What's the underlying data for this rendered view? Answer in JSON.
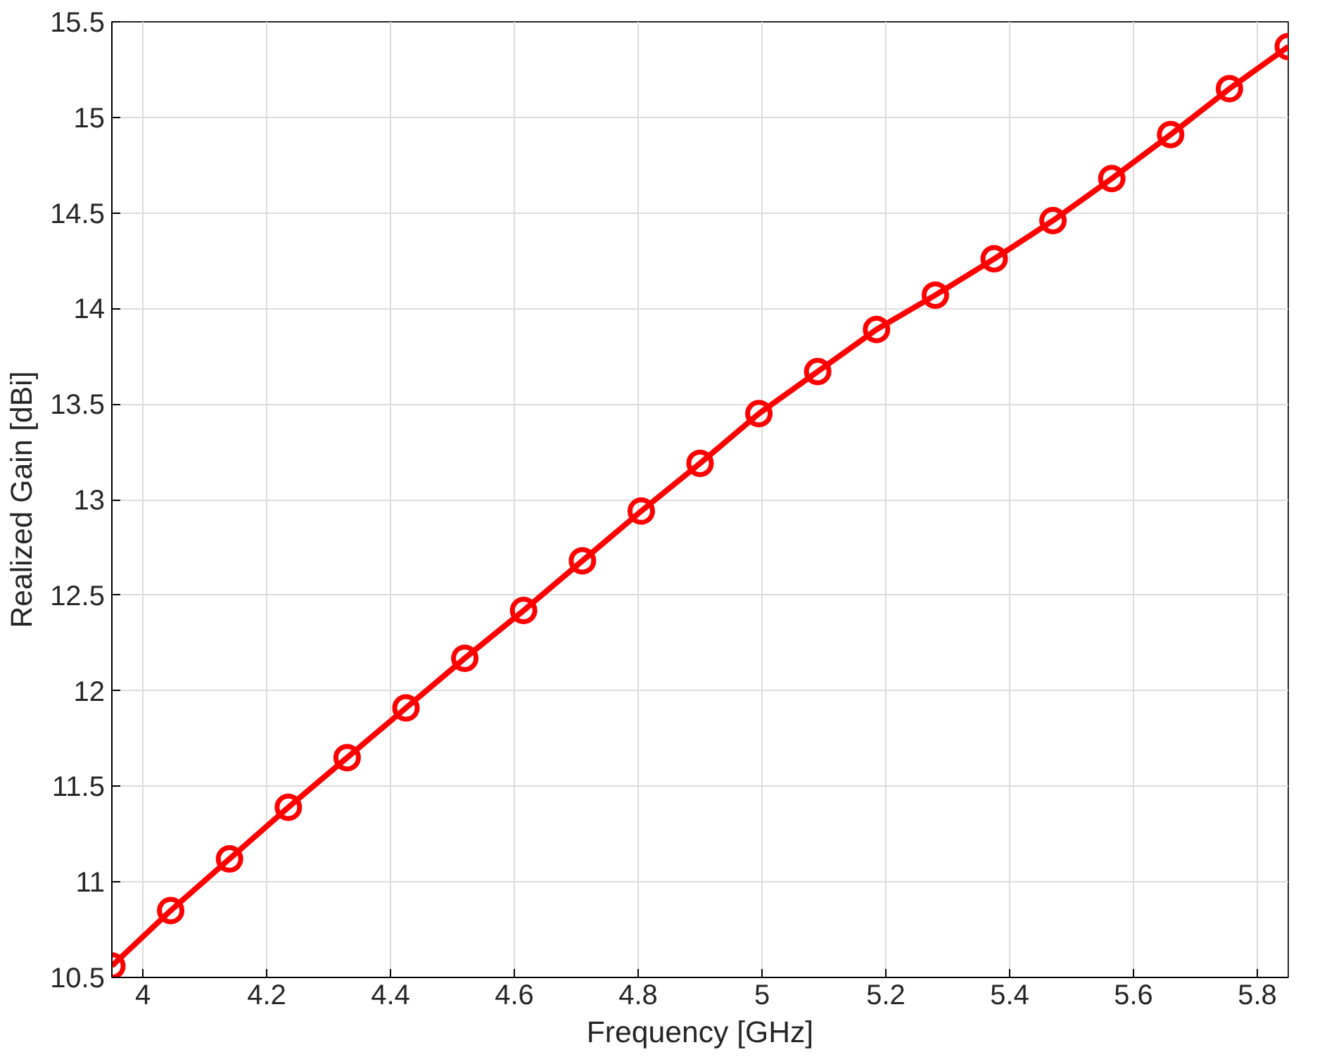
{
  "chart_data": {
    "type": "line",
    "xlabel": "Frequency [GHz]",
    "ylabel": "Realized Gain [dBi]",
    "x": [
      3.95,
      4.045,
      4.14,
      4.235,
      4.33,
      4.425,
      4.52,
      4.615,
      4.71,
      4.805,
      4.9,
      4.995,
      5.09,
      5.185,
      5.28,
      5.375,
      5.47,
      5.565,
      5.66,
      5.755,
      5.85
    ],
    "series": [
      {
        "color": "#ff0000",
        "values": [
          10.56,
          10.85,
          11.12,
          11.39,
          11.65,
          11.91,
          12.17,
          12.42,
          12.68,
          12.94,
          13.19,
          13.45,
          13.67,
          13.89,
          14.07,
          14.26,
          14.46,
          14.68,
          14.91,
          15.15,
          15.37
        ]
      }
    ],
    "xlim": [
      3.95,
      5.85
    ],
    "ylim": [
      10.5,
      15.5
    ],
    "xticks": [
      4,
      4.2,
      4.4,
      4.6,
      4.8,
      5,
      5.2,
      5.4,
      5.6,
      5.8
    ],
    "yticks": [
      10.5,
      11,
      11.5,
      12,
      12.5,
      13,
      13.5,
      14,
      14.5,
      15,
      15.5
    ],
    "grid": true,
    "marker": "circle",
    "line_style": "solid"
  }
}
